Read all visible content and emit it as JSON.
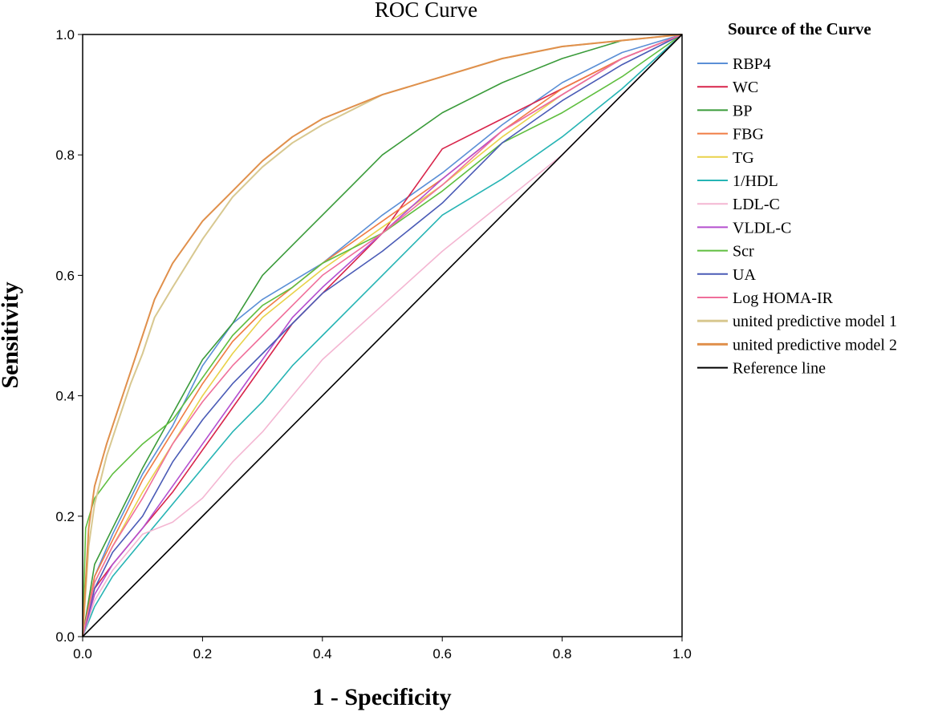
{
  "chart_data": {
    "type": "line",
    "title": "ROC Curve",
    "xlabel": "1 - Specificity",
    "ylabel": "Sensitivity",
    "xlim": [
      0,
      1
    ],
    "ylim": [
      0,
      1
    ],
    "xticks": [
      "0.0",
      "0.2",
      "0.4",
      "0.6",
      "0.8",
      "1.0"
    ],
    "yticks": [
      "0.0",
      "0.2",
      "0.4",
      "0.6",
      "0.8",
      "1.0"
    ],
    "grid": false,
    "legend_title": "Source of the Curve",
    "legend_position": "right",
    "series": [
      {
        "name": "RBP4",
        "color": "#5b8fd6",
        "x": [
          0,
          0.02,
          0.05,
          0.1,
          0.15,
          0.2,
          0.25,
          0.3,
          0.35,
          0.4,
          0.5,
          0.6,
          0.7,
          0.8,
          0.9,
          1.0
        ],
        "y": [
          0,
          0.1,
          0.17,
          0.27,
          0.35,
          0.45,
          0.52,
          0.56,
          0.59,
          0.62,
          0.7,
          0.77,
          0.85,
          0.92,
          0.97,
          1.0
        ]
      },
      {
        "name": "WC",
        "color": "#d8244a",
        "x": [
          0,
          0.02,
          0.05,
          0.1,
          0.15,
          0.2,
          0.25,
          0.3,
          0.35,
          0.4,
          0.5,
          0.6,
          0.7,
          0.8,
          0.9,
          1.0
        ],
        "y": [
          0,
          0.08,
          0.12,
          0.18,
          0.24,
          0.31,
          0.38,
          0.45,
          0.52,
          0.57,
          0.67,
          0.81,
          0.86,
          0.91,
          0.96,
          1.0
        ]
      },
      {
        "name": "BP",
        "color": "#3a9b3a",
        "x": [
          0,
          0.02,
          0.05,
          0.1,
          0.15,
          0.2,
          0.25,
          0.3,
          0.35,
          0.4,
          0.45,
          0.5,
          0.6,
          0.7,
          0.8,
          0.9,
          1.0
        ],
        "y": [
          0,
          0.12,
          0.18,
          0.28,
          0.37,
          0.46,
          0.52,
          0.6,
          0.65,
          0.7,
          0.75,
          0.8,
          0.87,
          0.92,
          0.96,
          0.99,
          1.0
        ]
      },
      {
        "name": "FBG",
        "color": "#f07c44",
        "x": [
          0,
          0.02,
          0.05,
          0.1,
          0.15,
          0.2,
          0.25,
          0.3,
          0.35,
          0.4,
          0.5,
          0.6,
          0.7,
          0.8,
          0.9,
          1.0
        ],
        "y": [
          0,
          0.1,
          0.16,
          0.26,
          0.34,
          0.42,
          0.49,
          0.54,
          0.58,
          0.62,
          0.69,
          0.76,
          0.84,
          0.91,
          0.96,
          1.0
        ]
      },
      {
        "name": "TG",
        "color": "#e9d24a",
        "x": [
          0,
          0.02,
          0.05,
          0.1,
          0.15,
          0.2,
          0.25,
          0.3,
          0.35,
          0.4,
          0.5,
          0.6,
          0.7,
          0.8,
          0.9,
          1.0
        ],
        "y": [
          0,
          0.09,
          0.15,
          0.24,
          0.32,
          0.4,
          0.47,
          0.53,
          0.57,
          0.61,
          0.68,
          0.75,
          0.83,
          0.9,
          0.96,
          1.0
        ]
      },
      {
        "name": "1/HDL",
        "color": "#26b4b4",
        "x": [
          0,
          0.02,
          0.05,
          0.1,
          0.15,
          0.2,
          0.25,
          0.3,
          0.35,
          0.4,
          0.5,
          0.6,
          0.7,
          0.8,
          0.9,
          1.0
        ],
        "y": [
          0,
          0.05,
          0.1,
          0.16,
          0.22,
          0.28,
          0.34,
          0.39,
          0.45,
          0.5,
          0.6,
          0.7,
          0.76,
          0.83,
          0.91,
          1.0
        ]
      },
      {
        "name": "LDL-C",
        "color": "#f4b6d2",
        "x": [
          0,
          0.02,
          0.05,
          0.1,
          0.15,
          0.2,
          0.25,
          0.3,
          0.35,
          0.4,
          0.5,
          0.6,
          0.7,
          0.8,
          0.9,
          1.0
        ],
        "y": [
          0,
          0.06,
          0.11,
          0.17,
          0.19,
          0.23,
          0.29,
          0.34,
          0.4,
          0.46,
          0.55,
          0.64,
          0.72,
          0.8,
          0.9,
          1.0
        ]
      },
      {
        "name": "VLDL-C",
        "color": "#b44fcf",
        "x": [
          0,
          0.02,
          0.05,
          0.1,
          0.15,
          0.2,
          0.25,
          0.3,
          0.35,
          0.4,
          0.5,
          0.6,
          0.7,
          0.8,
          0.9,
          1.0
        ],
        "y": [
          0,
          0.07,
          0.12,
          0.18,
          0.25,
          0.32,
          0.39,
          0.46,
          0.53,
          0.58,
          0.67,
          0.76,
          0.84,
          0.9,
          0.96,
          1.0
        ]
      },
      {
        "name": "Scr",
        "color": "#5fbe3f",
        "x": [
          0,
          0.005,
          0.02,
          0.05,
          0.1,
          0.15,
          0.2,
          0.25,
          0.3,
          0.35,
          0.4,
          0.5,
          0.6,
          0.7,
          0.8,
          0.9,
          1.0
        ],
        "y": [
          0,
          0.18,
          0.23,
          0.27,
          0.32,
          0.36,
          0.43,
          0.5,
          0.55,
          0.58,
          0.62,
          0.67,
          0.74,
          0.82,
          0.87,
          0.93,
          1.0
        ]
      },
      {
        "name": "UA",
        "color": "#4a5bb6",
        "x": [
          0,
          0.02,
          0.05,
          0.1,
          0.15,
          0.2,
          0.25,
          0.3,
          0.35,
          0.4,
          0.5,
          0.6,
          0.7,
          0.8,
          0.9,
          1.0
        ],
        "y": [
          0,
          0.08,
          0.14,
          0.2,
          0.29,
          0.36,
          0.42,
          0.47,
          0.52,
          0.57,
          0.64,
          0.72,
          0.82,
          0.89,
          0.95,
          1.0
        ]
      },
      {
        "name": "Log HOMA-IR",
        "color": "#f06f9a",
        "x": [
          0,
          0.02,
          0.05,
          0.1,
          0.15,
          0.2,
          0.25,
          0.3,
          0.35,
          0.4,
          0.5,
          0.6,
          0.7,
          0.8,
          0.9,
          1.0
        ],
        "y": [
          0,
          0.09,
          0.15,
          0.23,
          0.32,
          0.39,
          0.45,
          0.5,
          0.55,
          0.6,
          0.67,
          0.75,
          0.84,
          0.9,
          0.96,
          1.0
        ]
      },
      {
        "name": "united predictive model 1",
        "color": "#d8c890",
        "x": [
          0,
          0.01,
          0.02,
          0.04,
          0.06,
          0.08,
          0.1,
          0.12,
          0.15,
          0.2,
          0.25,
          0.3,
          0.35,
          0.4,
          0.5,
          0.6,
          0.7,
          0.8,
          0.9,
          1.0
        ],
        "y": [
          0,
          0.15,
          0.22,
          0.3,
          0.36,
          0.42,
          0.47,
          0.53,
          0.58,
          0.66,
          0.73,
          0.78,
          0.82,
          0.85,
          0.9,
          0.93,
          0.96,
          0.98,
          0.99,
          1.0
        ]
      },
      {
        "name": "united predictive model 2",
        "color": "#e0904c",
        "x": [
          0,
          0.01,
          0.02,
          0.04,
          0.06,
          0.08,
          0.1,
          0.12,
          0.15,
          0.2,
          0.25,
          0.3,
          0.35,
          0.4,
          0.5,
          0.6,
          0.7,
          0.8,
          0.9,
          1.0
        ],
        "y": [
          0,
          0.18,
          0.25,
          0.32,
          0.38,
          0.44,
          0.5,
          0.56,
          0.62,
          0.69,
          0.74,
          0.79,
          0.83,
          0.86,
          0.9,
          0.93,
          0.96,
          0.98,
          0.99,
          1.0
        ]
      },
      {
        "name": "Reference line",
        "color": "#000000",
        "x": [
          0,
          1
        ],
        "y": [
          0,
          1
        ]
      }
    ]
  }
}
